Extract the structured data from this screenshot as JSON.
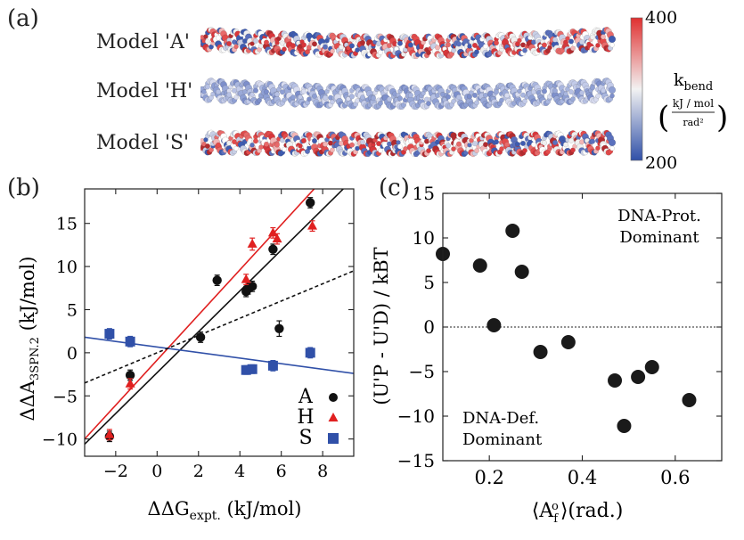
{
  "panel_a": {
    "label": "(a)",
    "models": [
      {
        "name": "Model 'A'",
        "style": "mixed"
      },
      {
        "name": "Model 'H'",
        "style": "blue"
      },
      {
        "name": "Model 'S'",
        "style": "mixed"
      }
    ],
    "colorbar": {
      "max": "400",
      "min": "200",
      "quantity_base": "k",
      "quantity_sub": "bend",
      "unit_num": "kJ / mol",
      "unit_den": "rad²",
      "colors": {
        "high": "#e03030",
        "mid": "#f2f2f2",
        "low": "#3050a8"
      }
    }
  },
  "chart_data": [
    {
      "id": "b",
      "type": "scatter",
      "panel_label": "(b)",
      "xlabel_base": "ΔΔG",
      "xlabel_sub": "expt.",
      "xlabel_unit": " (kJ/mol)",
      "ylabel_base": "ΔΔA",
      "ylabel_sub": "3SPN.2",
      "ylabel_unit": " (kJ/mol)",
      "xlim": [
        -3.5,
        9.5
      ],
      "ylim": [
        -12,
        19
      ],
      "xticks": [
        -2,
        0,
        2,
        4,
        6,
        8
      ],
      "yticks": [
        -10,
        -5,
        0,
        5,
        10,
        15
      ],
      "series": [
        {
          "name": "A",
          "color": "#111111",
          "marker": "circle",
          "x": [
            -2.3,
            -1.3,
            2.1,
            2.9,
            4.3,
            4.4,
            4.6,
            5.6,
            5.9,
            7.4
          ],
          "y": [
            -9.7,
            -2.6,
            1.8,
            8.4,
            7.1,
            7.4,
            7.7,
            12.0,
            2.8,
            17.4
          ],
          "err": [
            0.6,
            0.6,
            0.6,
            0.6,
            0.6,
            0.6,
            0.6,
            0.6,
            0.9,
            0.6
          ]
        },
        {
          "name": "H",
          "color": "#e02020",
          "marker": "triangle",
          "x": [
            -2.3,
            -1.3,
            4.3,
            4.6,
            5.6,
            5.8,
            7.5
          ],
          "y": [
            -9.5,
            -3.6,
            8.5,
            12.6,
            13.9,
            13.2,
            14.7
          ],
          "err": [
            0.6,
            0.6,
            0.6,
            0.7,
            0.6,
            0.6,
            0.6
          ]
        },
        {
          "name": "S",
          "color": "#3050a8",
          "marker": "square",
          "x": [
            -2.3,
            -1.3,
            4.3,
            4.6,
            5.6,
            7.4
          ],
          "y": [
            2.2,
            1.3,
            -2.0,
            -1.9,
            -1.5,
            0.0
          ],
          "err": [
            0.6,
            0.6,
            0.5,
            0.5,
            0.6,
            0.6
          ]
        }
      ],
      "fit_lines": [
        {
          "series": "A",
          "color": "#111111",
          "dashed": false,
          "x": [
            -3.5,
            9.5
          ],
          "y": [
            -10.6,
            20.2
          ]
        },
        {
          "series": "H",
          "color": "#e02020",
          "dashed": false,
          "x": [
            -3.5,
            9.5
          ],
          "y": [
            -10.0,
            24.0
          ]
        },
        {
          "series": "S",
          "color": "#3050a8",
          "dashed": false,
          "x": [
            -3.5,
            9.5
          ],
          "y": [
            1.8,
            -2.4
          ]
        },
        {
          "series": "reference",
          "color": "#111111",
          "dashed": true,
          "x": [
            -3.5,
            9.5
          ],
          "y": [
            -3.5,
            9.5
          ]
        }
      ],
      "legend": {
        "position": "bottom-right",
        "labels": [
          "A",
          "H",
          "S"
        ]
      }
    },
    {
      "id": "c",
      "type": "scatter",
      "panel_label": "(c)",
      "xlabel_main": "⟨A",
      "xlabel_sup": "o",
      "xlabel_sub": "f",
      "xlabel_tail": "⟩(rad.)",
      "ylabel": "(U'P - U'D) / kBT",
      "xlim": [
        0.1,
        0.7
      ],
      "ylim": [
        -15,
        15
      ],
      "xticks": [
        0.2,
        0.4,
        0.6
      ],
      "xtick_labels": [
        "0.2",
        "0.4",
        "0.6"
      ],
      "yticks": [
        -15,
        -10,
        -5,
        0,
        5,
        10,
        15
      ],
      "zero_line": true,
      "series": [
        {
          "name": "points",
          "color": "#1a1a1a",
          "x": [
            0.1,
            0.18,
            0.21,
            0.25,
            0.27,
            0.31,
            0.37,
            0.47,
            0.49,
            0.52,
            0.55,
            0.63
          ],
          "y": [
            8.2,
            6.9,
            0.2,
            10.8,
            6.2,
            -2.8,
            -1.7,
            -6.0,
            -11.1,
            -5.6,
            -4.5,
            -8.2
          ]
        }
      ],
      "annotations": {
        "top_right": [
          "DNA-Prot.",
          "Dominant"
        ],
        "bottom_left": [
          "DNA-Def.",
          "Dominant"
        ]
      }
    }
  ]
}
